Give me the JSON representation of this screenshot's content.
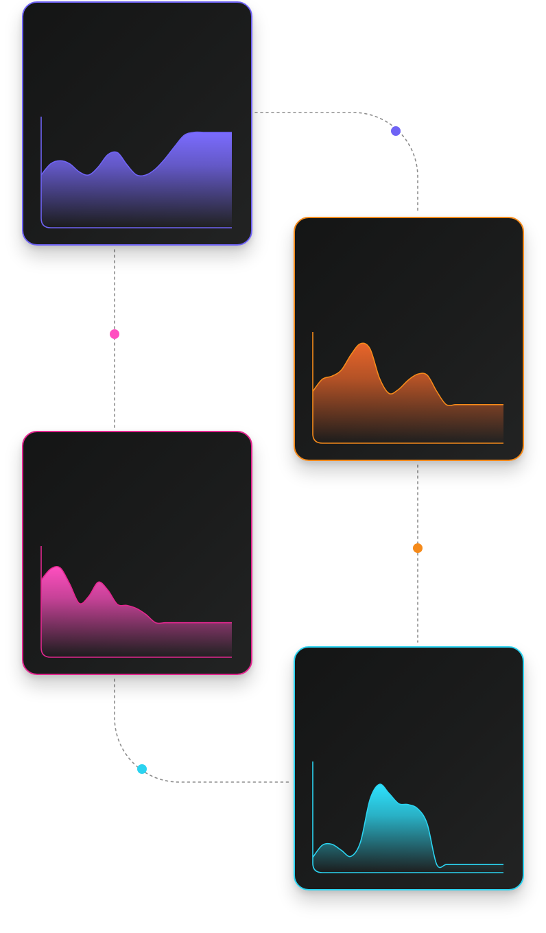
{
  "chart_data": [
    {
      "type": "area",
      "color": "#6f63f5",
      "fill_top": "#7b6cff",
      "x": [
        0,
        1,
        2,
        3,
        4,
        5,
        6,
        7,
        8,
        9,
        10,
        11,
        12,
        13,
        14,
        15,
        16,
        17,
        18,
        19,
        20
      ],
      "values": [
        0.52,
        0.63,
        0.66,
        0.63,
        0.55,
        0.52,
        0.6,
        0.72,
        0.74,
        0.62,
        0.52,
        0.52,
        0.58,
        0.68,
        0.8,
        0.91,
        0.94,
        0.94,
        0.94,
        0.94,
        0.94
      ],
      "ylim": [
        0,
        1
      ]
    },
    {
      "type": "area",
      "color": "#f58a1a",
      "fill_top": "#e8652a",
      "x": [
        0,
        1,
        2,
        3,
        4,
        5,
        6,
        7,
        8,
        9,
        10,
        11,
        12,
        13,
        14,
        15,
        16,
        17,
        18,
        19,
        20
      ],
      "values": [
        0.51,
        0.63,
        0.66,
        0.72,
        0.87,
        0.98,
        0.93,
        0.64,
        0.49,
        0.53,
        0.62,
        0.68,
        0.67,
        0.51,
        0.38,
        0.38,
        0.38,
        0.38,
        0.38,
        0.38,
        0.38
      ],
      "ylim": [
        0,
        1
      ]
    },
    {
      "type": "area",
      "color": "#e2278f",
      "fill_top": "#ff4fc0",
      "x": [
        0,
        1,
        2,
        3,
        4,
        5,
        6,
        7,
        8,
        9,
        10,
        11,
        12,
        13,
        14,
        15,
        16,
        17,
        18,
        19,
        20
      ],
      "values": [
        0.76,
        0.87,
        0.88,
        0.72,
        0.53,
        0.6,
        0.74,
        0.66,
        0.52,
        0.51,
        0.48,
        0.42,
        0.34,
        0.34,
        0.34,
        0.34,
        0.34,
        0.34,
        0.34,
        0.34,
        0.34
      ],
      "ylim": [
        0,
        1
      ]
    },
    {
      "type": "area",
      "color": "#2bd3f0",
      "fill_top": "#2ee3ff",
      "x": [
        0,
        1,
        2,
        3,
        4,
        5,
        6,
        7,
        8,
        9,
        10,
        11,
        12,
        13,
        14,
        15,
        16,
        17,
        18,
        19,
        20
      ],
      "values": [
        0.15,
        0.27,
        0.28,
        0.22,
        0.16,
        0.3,
        0.72,
        0.87,
        0.78,
        0.68,
        0.67,
        0.63,
        0.48,
        0.08,
        0.08,
        0.08,
        0.08,
        0.08,
        0.08,
        0.08,
        0.08
      ],
      "ylim": [
        0,
        1
      ]
    }
  ],
  "connectors": [
    {
      "color": "#6f63f5"
    },
    {
      "color": "#ff4fc0"
    },
    {
      "color": "#f58a1a"
    },
    {
      "color": "#2bd3f0"
    }
  ]
}
